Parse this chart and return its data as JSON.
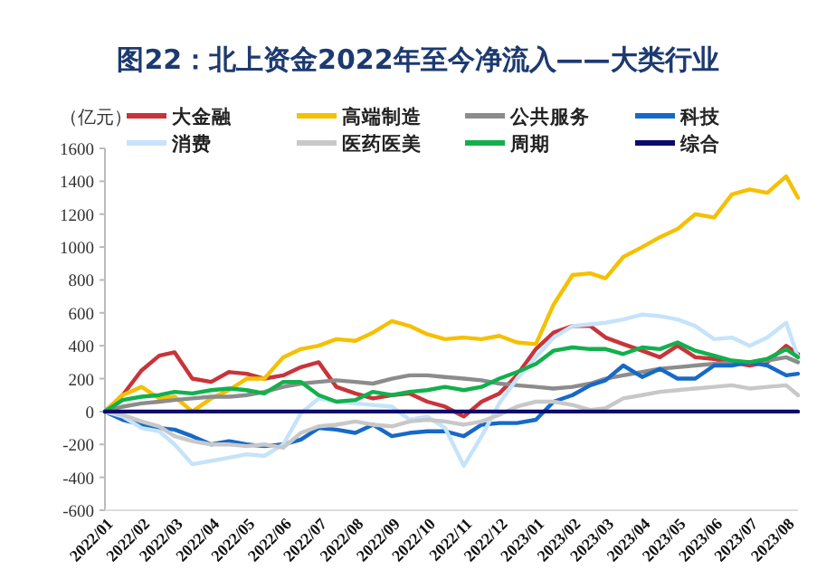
{
  "chart_data": {
    "type": "line",
    "title": "图22：北上资金2022年至今净流入——大类行业",
    "ylabel": "（亿元）",
    "x": [
      "2022-01-01",
      "2022-01-16",
      "2022-02-01",
      "2022-02-16",
      "2022-03-01",
      "2022-03-16",
      "2022-04-01",
      "2022-04-16",
      "2022-05-01",
      "2022-05-16",
      "2022-06-01",
      "2022-06-16",
      "2022-07-01",
      "2022-07-16",
      "2022-08-01",
      "2022-08-16",
      "2022-09-01",
      "2022-09-16",
      "2022-10-01",
      "2022-10-16",
      "2022-11-01",
      "2022-11-16",
      "2022-12-01",
      "2022-12-16",
      "2023-01-01",
      "2023-01-16",
      "2023-02-01",
      "2023-02-16",
      "2023-03-01",
      "2023-03-16",
      "2023-04-01",
      "2023-04-16",
      "2023-05-01",
      "2023-05-16",
      "2023-06-01",
      "2023-06-16",
      "2023-07-01",
      "2023-07-16",
      "2023-08-01",
      "2023-08-11"
    ],
    "series": [
      {
        "name": "大金融",
        "color": "#c8343a",
        "values": [
          0,
          100,
          250,
          340,
          360,
          200,
          180,
          240,
          230,
          200,
          220,
          270,
          300,
          150,
          110,
          80,
          100,
          110,
          60,
          30,
          -30,
          60,
          110,
          220,
          380,
          480,
          520,
          520,
          450,
          410,
          370,
          330,
          400,
          330,
          320,
          300,
          280,
          300,
          400,
          350
        ]
      },
      {
        "name": "高端制造",
        "color": "#f5c000",
        "values": [
          0,
          100,
          150,
          80,
          90,
          0,
          80,
          130,
          200,
          200,
          330,
          380,
          400,
          440,
          430,
          480,
          550,
          520,
          470,
          440,
          450,
          440,
          460,
          420,
          410,
          650,
          830,
          840,
          810,
          940,
          1000,
          1060,
          1110,
          1200,
          1180,
          1320,
          1350,
          1330,
          1430,
          1300
        ]
      },
      {
        "name": "公共服务",
        "color": "#8c8c8c",
        "values": [
          0,
          30,
          50,
          60,
          70,
          80,
          90,
          90,
          100,
          120,
          150,
          170,
          180,
          190,
          180,
          170,
          200,
          220,
          220,
          210,
          200,
          190,
          170,
          160,
          150,
          140,
          150,
          170,
          200,
          220,
          240,
          260,
          270,
          280,
          290,
          300,
          300,
          310,
          330,
          300
        ]
      },
      {
        "name": "科技",
        "color": "#1769c8",
        "values": [
          0,
          -50,
          -80,
          -100,
          -110,
          -150,
          -200,
          -180,
          -200,
          -210,
          -200,
          -170,
          -100,
          -110,
          -130,
          -80,
          -150,
          -130,
          -120,
          -120,
          -150,
          -80,
          -70,
          -70,
          -50,
          60,
          100,
          160,
          190,
          280,
          210,
          260,
          200,
          200,
          280,
          280,
          300,
          280,
          220,
          230
        ]
      },
      {
        "name": "消费",
        "color": "#c5e3fa",
        "values": [
          0,
          -30,
          -100,
          -120,
          -200,
          -320,
          -300,
          -280,
          -260,
          -270,
          -200,
          -10,
          80,
          60,
          50,
          40,
          30,
          -50,
          -30,
          -100,
          -330,
          -150,
          50,
          200,
          330,
          450,
          520,
          530,
          540,
          560,
          590,
          580,
          560,
          520,
          440,
          450,
          400,
          450,
          540,
          330
        ]
      },
      {
        "name": "医药医美",
        "color": "#c8c8c8",
        "values": [
          0,
          -20,
          -60,
          -90,
          -150,
          -180,
          -200,
          -200,
          -210,
          -200,
          -220,
          -130,
          -90,
          -80,
          -60,
          -80,
          -90,
          -60,
          -50,
          -60,
          -80,
          -60,
          -20,
          30,
          60,
          60,
          40,
          10,
          20,
          80,
          100,
          120,
          130,
          140,
          150,
          160,
          140,
          150,
          160,
          100
        ]
      },
      {
        "name": "周期",
        "color": "#12b04c",
        "values": [
          0,
          70,
          90,
          100,
          120,
          110,
          130,
          140,
          130,
          110,
          180,
          180,
          100,
          60,
          70,
          120,
          100,
          120,
          130,
          150,
          130,
          150,
          200,
          240,
          290,
          370,
          390,
          380,
          380,
          350,
          390,
          380,
          420,
          370,
          340,
          310,
          300,
          320,
          380,
          330
        ]
      },
      {
        "name": "综合",
        "color": "#0a0a6e",
        "values": [
          0,
          0,
          0,
          0,
          0,
          0,
          0,
          0,
          0,
          0,
          0,
          0,
          0,
          0,
          0,
          0,
          0,
          0,
          0,
          0,
          0,
          0,
          0,
          0,
          0,
          0,
          0,
          0,
          0,
          0,
          0,
          0,
          0,
          0,
          0,
          0,
          0,
          0,
          0,
          0
        ]
      }
    ],
    "xlim": [
      "2022-01-01",
      "2023-08-11"
    ],
    "xticks": [
      {
        "value": "2022-01-01",
        "label": "2022/01"
      },
      {
        "value": "2022-02-01",
        "label": "2022/02"
      },
      {
        "value": "2022-03-01",
        "label": "2022/03"
      },
      {
        "value": "2022-04-01",
        "label": "2022/04"
      },
      {
        "value": "2022-05-01",
        "label": "2022/05"
      },
      {
        "value": "2022-06-01",
        "label": "2022/06"
      },
      {
        "value": "2022-07-01",
        "label": "2022/07"
      },
      {
        "value": "2022-08-01",
        "label": "2022/08"
      },
      {
        "value": "2022-09-01",
        "label": "2022/09"
      },
      {
        "value": "2022-10-01",
        "label": "2022/10"
      },
      {
        "value": "2022-11-01",
        "label": "2022/11"
      },
      {
        "value": "2022-12-01",
        "label": "2022/12"
      },
      {
        "value": "2023-01-01",
        "label": "2023/01"
      },
      {
        "value": "2023-02-01",
        "label": "2023/02"
      },
      {
        "value": "2023-03-01",
        "label": "2023/03"
      },
      {
        "value": "2023-04-01",
        "label": "2023/04"
      },
      {
        "value": "2023-05-01",
        "label": "2023/05"
      },
      {
        "value": "2023-06-01",
        "label": "2023/06"
      },
      {
        "value": "2023-07-01",
        "label": "2023/07"
      },
      {
        "value": "2023-08-01",
        "label": "2023/08"
      }
    ],
    "ylim": [
      -600,
      1600
    ],
    "yticks": [
      -600,
      -400,
      -200,
      0,
      200,
      400,
      600,
      800,
      1000,
      1200,
      1400,
      1600
    ],
    "legend": "top",
    "line_style": "solid"
  }
}
